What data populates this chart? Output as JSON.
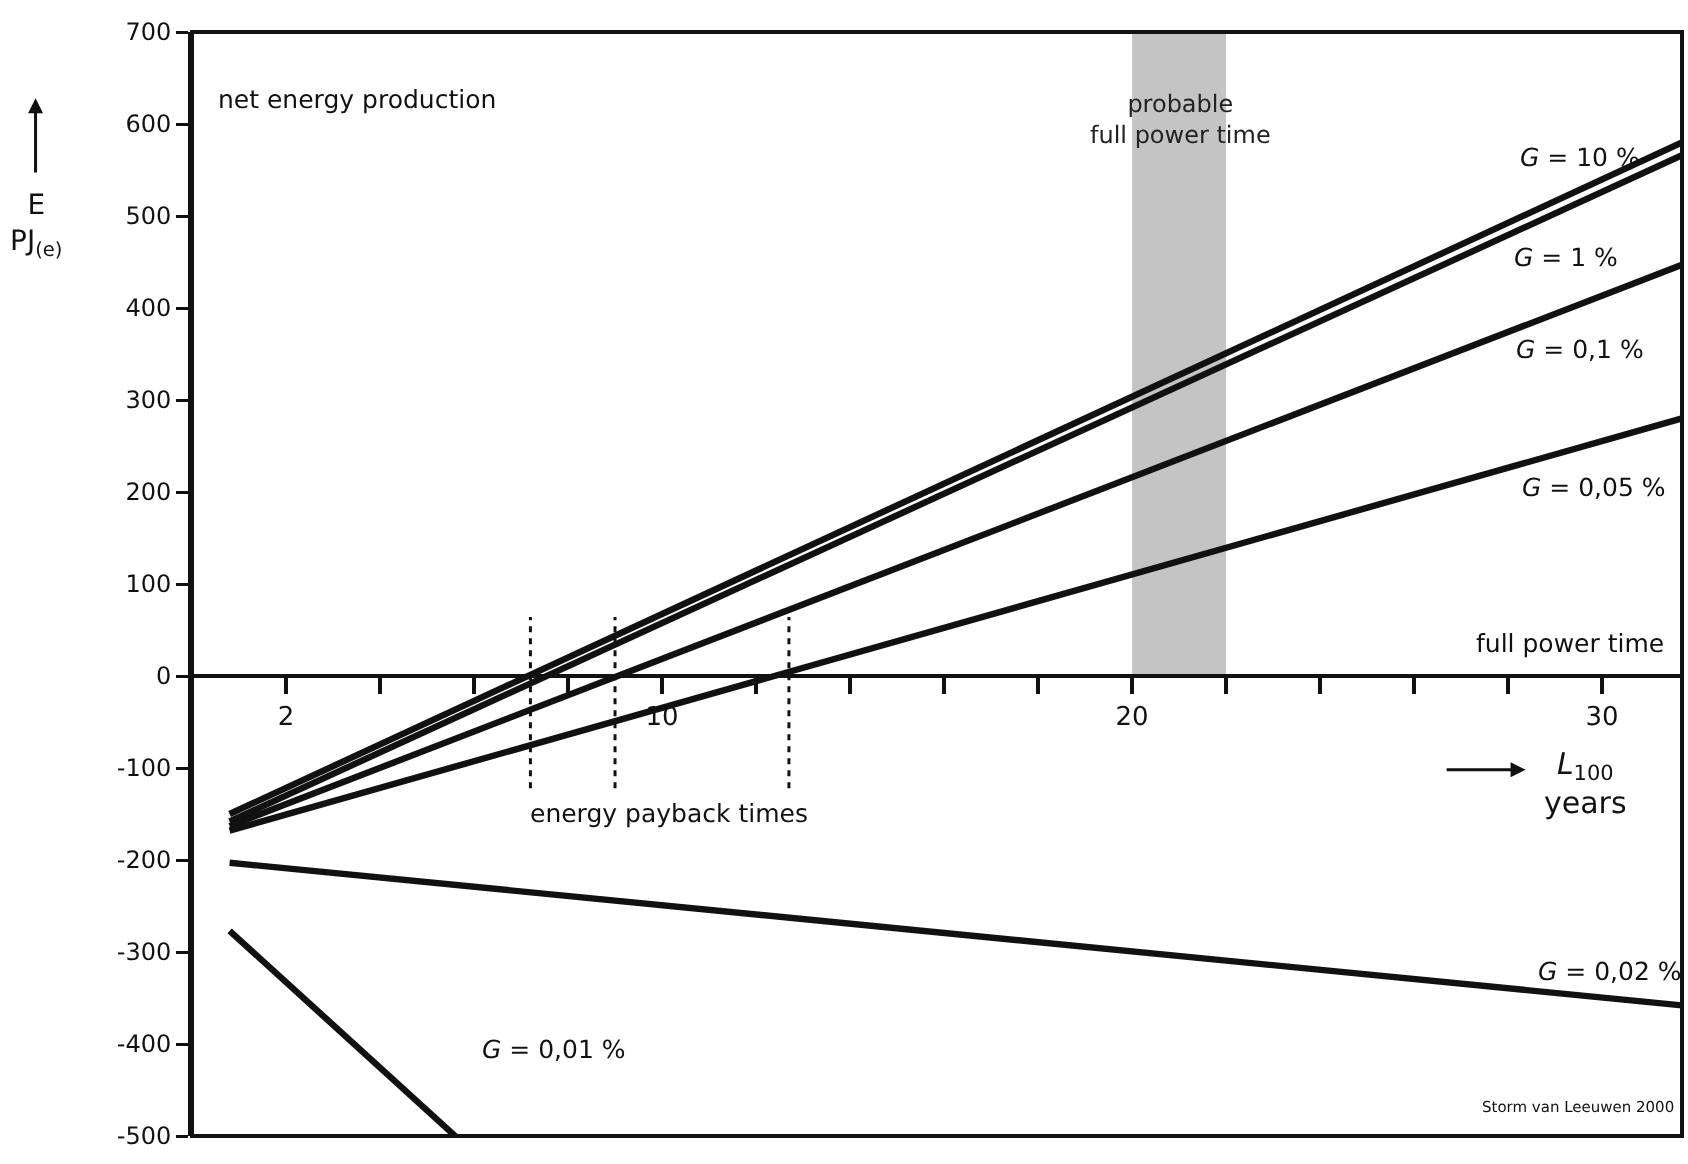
{
  "chart_data": {
    "type": "line",
    "xlabel": "L$_{100}$ years",
    "ylabel": "E PJ$_{(e)}$",
    "xlim": [
      0,
      31.7
    ],
    "ylim": [
      -500,
      700
    ],
    "xticks": [
      {
        "value": 2,
        "label": "2"
      },
      {
        "value": 4,
        "label": null
      },
      {
        "value": 6,
        "label": null
      },
      {
        "value": 8,
        "label": null
      },
      {
        "value": 10,
        "label": "10"
      },
      {
        "value": 12,
        "label": null
      },
      {
        "value": 14,
        "label": null
      },
      {
        "value": 16,
        "label": null
      },
      {
        "value": 18,
        "label": null
      },
      {
        "value": 20,
        "label": "20"
      },
      {
        "value": 22,
        "label": null
      },
      {
        "value": 24,
        "label": null
      },
      {
        "value": 26,
        "label": null
      },
      {
        "value": 28,
        "label": null
      },
      {
        "value": 30,
        "label": "30"
      }
    ],
    "yticks": [
      -500,
      -400,
      -300,
      -200,
      -100,
      0,
      100,
      200,
      300,
      400,
      500,
      600,
      700
    ],
    "grid": false,
    "legend": false,
    "marker": "none",
    "line_style": "solid",
    "series": [
      {
        "name": "G = 10 %",
        "color": "#111111",
        "x": [
          0.8,
          31.7
        ],
        "values": [
          -150,
          580
        ]
      },
      {
        "name": "G = 1 %",
        "color": "#111111",
        "x": [
          0.8,
          31.7
        ],
        "values": [
          -158,
          566
        ]
      },
      {
        "name": "G = 0,1 %",
        "color": "#111111",
        "x": [
          0.8,
          31.7
        ],
        "values": [
          -163,
          447
        ]
      },
      {
        "name": "G = 0,05 %",
        "color": "#111111",
        "x": [
          0.8,
          31.7
        ],
        "values": [
          -168,
          280
        ]
      },
      {
        "name": "G = 0,02 %",
        "color": "#111111",
        "x": [
          0.8,
          31.7
        ],
        "values": [
          -203,
          -358
        ]
      },
      {
        "name": "G = 0,01 %",
        "color": "#111111",
        "x": [
          0.8,
          5.6
        ],
        "values": [
          -277,
          -500
        ]
      }
    ],
    "bands": [
      {
        "axis": "x",
        "from": 20,
        "to": 22,
        "label": "probable full power time",
        "color": "#c4c4c4"
      }
    ],
    "ref_lines": [
      {
        "axis": "x",
        "value": 7.2,
        "label": null,
        "line_style": "dotted"
      },
      {
        "axis": "x",
        "value": 9.0,
        "label": "energy payback times",
        "line_style": "dotted"
      },
      {
        "axis": "x",
        "value": 12.7,
        "label": null,
        "line_style": "dotted"
      }
    ],
    "annotations": [
      "net energy production",
      "full power time",
      "Storm van Leeuwen 2000"
    ]
  }
}
